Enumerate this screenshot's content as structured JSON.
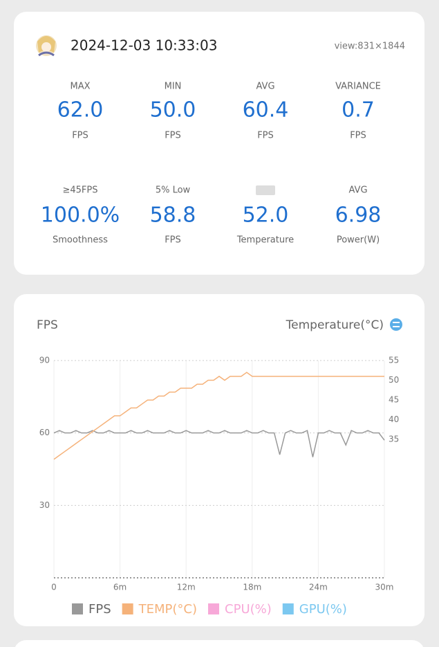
{
  "header": {
    "datetime": "2024-12-03 10:33:03",
    "view": "view:831×1844"
  },
  "stats": [
    {
      "label": "MAX",
      "value": "62.0",
      "unit": "FPS"
    },
    {
      "label": "MIN",
      "value": "50.0",
      "unit": "FPS"
    },
    {
      "label": "AVG",
      "value": "60.4",
      "unit": "FPS"
    },
    {
      "label": "VARIANCE",
      "value": "0.7",
      "unit": "FPS"
    },
    {
      "label": "≥45FPS",
      "value": "100.0%",
      "unit": "Smoothness"
    },
    {
      "label": "5% Low",
      "value": "58.8",
      "unit": "FPS"
    },
    {
      "value": "52.0",
      "unit": "Temperature"
    },
    {
      "label": "AVG",
      "value": "6.98",
      "unit": "Power(W)"
    }
  ],
  "chart_data": {
    "type": "line",
    "y_label": "FPS",
    "y2_label": "Temperature(°C)",
    "x": [
      0,
      0.5,
      1,
      1.5,
      2,
      2.5,
      3,
      3.5,
      4,
      4.5,
      5,
      5.5,
      6,
      6.5,
      7,
      7.5,
      8,
      8.5,
      9,
      9.5,
      10,
      10.5,
      11,
      11.5,
      12,
      12.5,
      13,
      13.5,
      14,
      14.5,
      15,
      15.5,
      16,
      16.5,
      17,
      17.5,
      18,
      18.5,
      19,
      19.5,
      20,
      20.5,
      21,
      21.5,
      22,
      22.5,
      23,
      23.5,
      24,
      24.5,
      25,
      25.5,
      26,
      26.5,
      27,
      27.5,
      28,
      28.5,
      29,
      29.5,
      30
    ],
    "xlim": [
      0,
      30
    ],
    "xticks": [
      0,
      {
        "value": 6,
        "label": "6m"
      },
      {
        "value": 12,
        "label": "12m"
      },
      {
        "value": 18,
        "label": "18m"
      },
      {
        "value": 24,
        "label": "24m"
      },
      {
        "value": 30,
        "label": "30m"
      }
    ],
    "ylim": [
      0,
      90
    ],
    "yticks": [
      30,
      60,
      90
    ],
    "y2lim": [
      0,
      55
    ],
    "y2ticks": [
      35,
      40,
      45,
      50,
      55
    ],
    "grid": true,
    "series": [
      {
        "name": "FPS",
        "color": "#999999",
        "values": [
          60,
          61,
          60,
          60,
          61,
          60,
          60,
          61,
          60,
          60,
          61,
          60,
          60,
          60,
          61,
          60,
          60,
          61,
          60,
          60,
          60,
          61,
          60,
          60,
          61,
          60,
          60,
          60,
          61,
          60,
          60,
          61,
          60,
          60,
          60,
          61,
          60,
          60,
          61,
          60,
          60,
          51,
          60,
          61,
          60,
          60,
          61,
          50,
          60,
          60,
          61,
          60,
          60,
          55,
          61,
          60,
          60,
          61,
          60,
          60,
          57
        ]
      },
      {
        "name": "TEMP(°C)",
        "color": "#f5b27a",
        "axis": "y2",
        "values": [
          30,
          31,
          32,
          33,
          34,
          35,
          36,
          37,
          38,
          39,
          40,
          41,
          41,
          42,
          43,
          43,
          44,
          45,
          45,
          46,
          46,
          47,
          47,
          48,
          48,
          48,
          49,
          49,
          50,
          50,
          51,
          50,
          51,
          51,
          51,
          52,
          51,
          51,
          51,
          51,
          51,
          51,
          51,
          51,
          51,
          51,
          51,
          51,
          51,
          51,
          51,
          51,
          51,
          51,
          51,
          51,
          51,
          51,
          51,
          51,
          51
        ]
      },
      {
        "name": "CPU(%)",
        "color": "#f7a8d8"
      },
      {
        "name": "GPU(%)",
        "color": "#7cc8f0"
      }
    ]
  }
}
